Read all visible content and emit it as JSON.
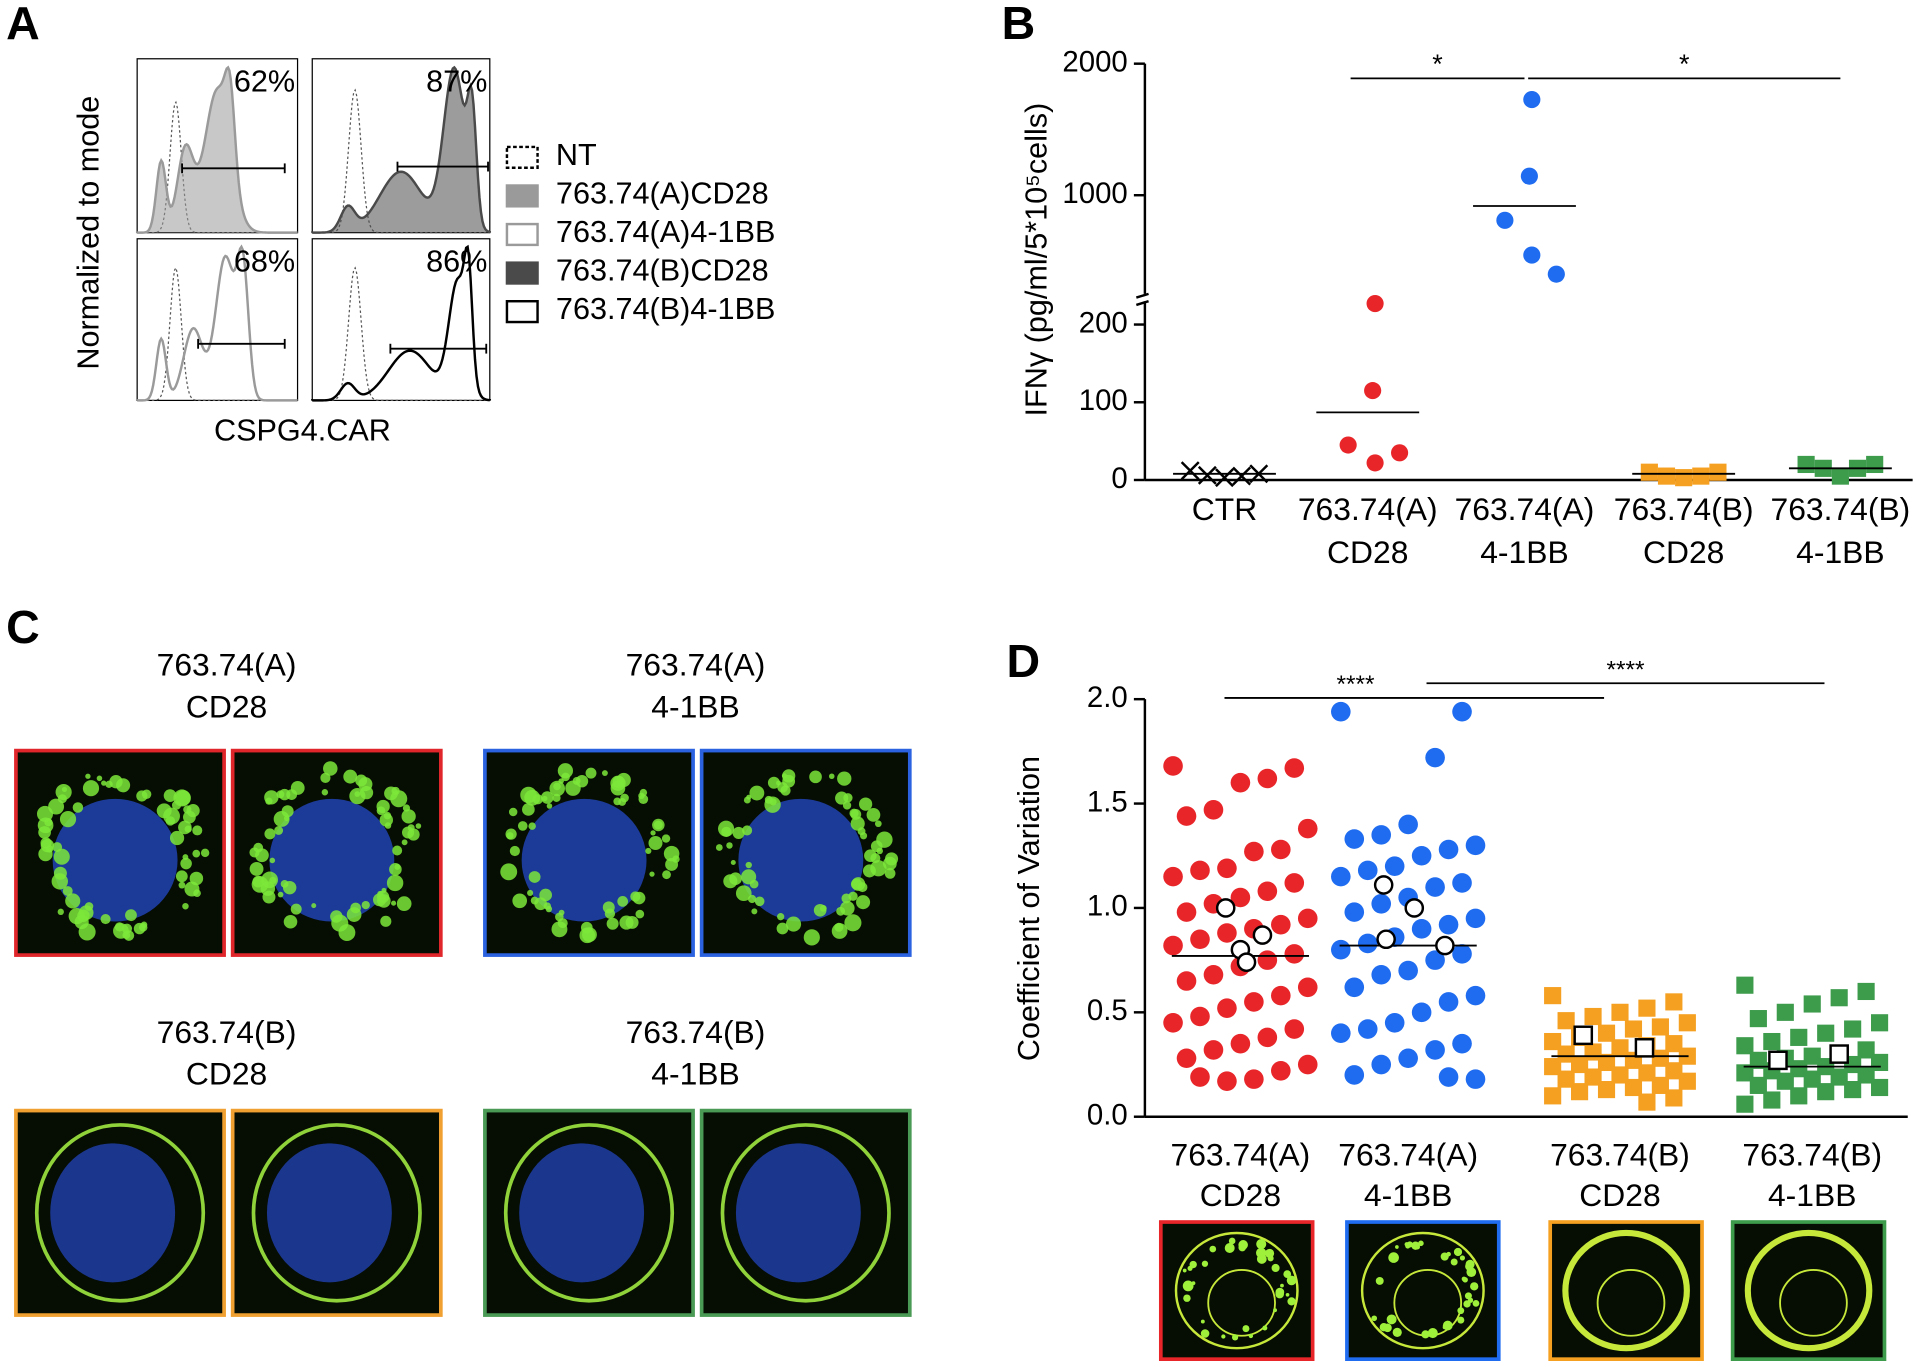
{
  "panel_a": {
    "letter": "A",
    "y_label": "Normalized to mode",
    "x_label": "CSPG4.CAR",
    "values": [
      62,
      87,
      68,
      86
    ],
    "value_labels": [
      "62%",
      "87%",
      "68%",
      "86%"
    ],
    "legend": [
      {
        "label": "NT",
        "fill": "none",
        "stroke": "#000000",
        "dashed": true
      },
      {
        "label": "763.74(A)CD28",
        "fill": "#9a9a9a",
        "stroke": "#9a9a9a"
      },
      {
        "label": "763.74(A)4-1BB",
        "fill": "none",
        "stroke": "#9a9a9a"
      },
      {
        "label": "763.74(B)CD28",
        "fill": "#4a4a4a",
        "stroke": "#4a4a4a"
      },
      {
        "label": "763.74(B)4-1BB",
        "fill": "none",
        "stroke": "#000000"
      }
    ]
  },
  "panel_b": {
    "letter": "B",
    "type": "dot",
    "y_label": "IFNγ (pg/ml/5*10⁵cells)",
    "ylim": [
      0,
      230
    ],
    "yticks": [
      0,
      100,
      200
    ],
    "ylim_upper": [
      250,
      2000
    ],
    "yticks_upper": [
      1000,
      2000
    ],
    "categories": [
      [
        "CTR"
      ],
      [
        "763.74(A)",
        "CD28"
      ],
      [
        "763.74(A)",
        "4-1BB"
      ],
      [
        "763.74(B)",
        "CD28"
      ],
      [
        "763.74(B)",
        "4-1BB"
      ]
    ],
    "series": [
      {
        "marker": "x",
        "color": "#000000",
        "values": [
          12,
          6,
          3,
          5,
          8
        ],
        "median": 8
      },
      {
        "marker": "circle",
        "color": "#e8262a",
        "values": [
          227,
          115,
          45,
          22,
          35
        ],
        "median": 87
      },
      {
        "marker": "circle",
        "color": "#1f6cf0",
        "values": [
          1727,
          1145,
          809,
          545,
          400
        ],
        "median": 918
      },
      {
        "marker": "square",
        "color": "#f5a021",
        "values": [
          10,
          5,
          3,
          5,
          10
        ],
        "median": 8
      },
      {
        "marker": "square",
        "color": "#3d9b4c",
        "values": [
          20,
          15,
          5,
          15,
          20
        ],
        "median": 15
      }
    ],
    "significance": [
      {
        "from": 1,
        "to": 2,
        "label": "*"
      },
      {
        "from": 2,
        "to": 4,
        "label": "*"
      }
    ]
  },
  "panel_c": {
    "letter": "C",
    "images": [
      {
        "title": [
          "763.74(A)",
          "CD28"
        ],
        "color": "#e0262a"
      },
      {
        "title": [
          "763.74(A)",
          "4-1BB"
        ],
        "color": "#2a62e0"
      },
      {
        "title": [
          "763.74(B)",
          "CD28"
        ],
        "color": "#f0a030"
      },
      {
        "title": [
          "763.74(B)",
          "4-1BB"
        ],
        "color": "#4a9a55"
      }
    ]
  },
  "panel_d": {
    "letter": "D",
    "type": "dot",
    "y_label": "Coefficient of Variation",
    "ylim": [
      0,
      2.0
    ],
    "yticks": [
      {
        "value": 0,
        "label": "0.0"
      },
      0.5,
      {
        "value": 1.0,
        "label": "1.0"
      },
      1.5,
      {
        "value": 2.0,
        "label": "2.0"
      }
    ],
    "categories": [
      [
        "763.74(A)",
        "CD28"
      ],
      [
        "763.74(A)",
        "4-1BB"
      ],
      [
        "763.74(B)",
        "CD28"
      ],
      [
        "763.74(B)",
        "4-1BB"
      ]
    ],
    "series": [
      {
        "marker": "circle",
        "color": "#e8262a",
        "median": 0.77,
        "open_values": [
          1.0,
          0.8,
          0.87,
          0.74
        ],
        "values": [
          1.68,
          1.67,
          1.62,
          1.6,
          1.47,
          1.44,
          1.38,
          1.28,
          1.27,
          1.19,
          1.18,
          1.15,
          1.12,
          1.08,
          1.05,
          1.02,
          0.98,
          0.95,
          0.92,
          0.9,
          0.88,
          0.85,
          0.82,
          0.78,
          0.75,
          0.72,
          0.68,
          0.65,
          0.62,
          0.58,
          0.55,
          0.52,
          0.48,
          0.45,
          0.42,
          0.38,
          0.35,
          0.32,
          0.28,
          0.25,
          0.22,
          0.18,
          0.17,
          0.19
        ]
      },
      {
        "marker": "circle",
        "color": "#1f6cf0",
        "median": 0.82,
        "open_values": [
          1.11,
          0.85,
          1.0,
          0.82
        ],
        "values": [
          1.94,
          1.94,
          1.72,
          1.4,
          1.35,
          1.33,
          1.3,
          1.28,
          1.25,
          1.2,
          1.18,
          1.15,
          1.12,
          1.1,
          1.05,
          1.02,
          0.98,
          0.95,
          0.92,
          0.9,
          0.86,
          0.83,
          0.8,
          0.78,
          0.75,
          0.7,
          0.68,
          0.62,
          0.58,
          0.55,
          0.5,
          0.45,
          0.42,
          0.4,
          0.35,
          0.32,
          0.28,
          0.25,
          0.2,
          0.18,
          0.19
        ]
      },
      {
        "marker": "square",
        "color": "#f5a021",
        "median": 0.29,
        "open_values": [
          0.39,
          0.33
        ],
        "values": [
          0.58,
          0.55,
          0.52,
          0.5,
          0.48,
          0.46,
          0.45,
          0.43,
          0.42,
          0.4,
          0.38,
          0.36,
          0.35,
          0.34,
          0.33,
          0.31,
          0.3,
          0.29,
          0.28,
          0.27,
          0.26,
          0.25,
          0.24,
          0.22,
          0.21,
          0.2,
          0.19,
          0.18,
          0.17,
          0.15,
          0.14,
          0.13,
          0.12,
          0.1,
          0.09,
          0.07
        ]
      },
      {
        "marker": "square",
        "color": "#3d9b4c",
        "median": 0.24,
        "open_values": [
          0.27,
          0.3
        ],
        "values": [
          0.63,
          0.6,
          0.57,
          0.54,
          0.5,
          0.47,
          0.45,
          0.42,
          0.4,
          0.38,
          0.36,
          0.34,
          0.32,
          0.3,
          0.29,
          0.28,
          0.27,
          0.26,
          0.25,
          0.24,
          0.23,
          0.22,
          0.21,
          0.2,
          0.19,
          0.18,
          0.17,
          0.15,
          0.14,
          0.13,
          0.12,
          0.1,
          0.08,
          0.06
        ]
      }
    ],
    "significance": [
      {
        "from": 0,
        "to": 2,
        "label": "****"
      },
      {
        "from": 1,
        "to": 3,
        "label": "****"
      }
    ]
  }
}
